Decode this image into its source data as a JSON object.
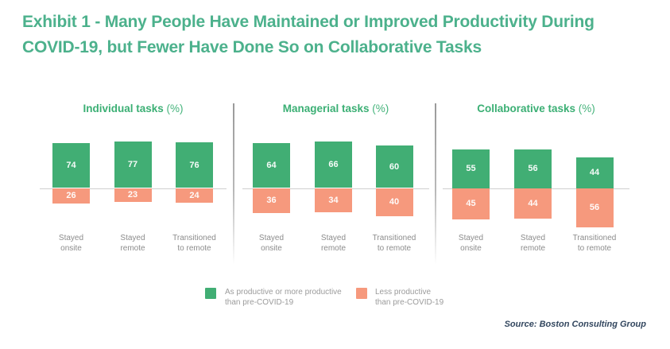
{
  "header": {
    "title_line1": "Exhibit 1 - Many People Have Maintained or Improved Productivity During",
    "title_line2": "COVID-19, but Fewer Have Done So on Collaborative Tasks",
    "title_color": "#4CB18C"
  },
  "chart_data": {
    "type": "bar",
    "variant": "diverging_stacked_percentage",
    "title": "Exhibit 1 - Many People Have Maintained or Improved Productivity During COVID-19, but Fewer Have Done So on Collaborative Tasks",
    "categories": [
      "Stayed onsite",
      "Stayed remote",
      "Transitioned to remote"
    ],
    "category_lines": [
      [
        "Stayed",
        "onsite"
      ],
      [
        "Stayed",
        "remote"
      ],
      [
        "Transitioned",
        "to remote"
      ]
    ],
    "panels": [
      {
        "title": "Individual tasks",
        "title_suffix": "(%)",
        "positive": [
          74,
          77,
          76
        ],
        "negative": [
          26,
          23,
          24
        ]
      },
      {
        "title": "Managerial tasks",
        "title_suffix": "(%)",
        "positive": [
          64,
          66,
          60
        ],
        "negative": [
          36,
          34,
          40
        ]
      },
      {
        "title": "Collaborative tasks",
        "title_suffix": "(%)",
        "positive": [
          55,
          56,
          44
        ],
        "negative": [
          45,
          44,
          56
        ]
      }
    ],
    "series": [
      {
        "name": "As productive or more productive than pre-COVID-19",
        "lines": [
          "As productive or more productive",
          "than pre-COVID-19"
        ],
        "color": "#41AE74"
      },
      {
        "name": "Less productive than pre-COVID-19",
        "lines": [
          "Less productive",
          "than pre-COVID-19"
        ],
        "color": "#F6997D"
      }
    ],
    "panel_title_color": "#3BAF74",
    "value_label_color": "#FFFFFF",
    "baseline_color": "#CFCFCF",
    "grid": false,
    "legend_position": "bottom-center",
    "unit": "%"
  },
  "footer": {
    "source": "Source: Boston Consulting Group"
  }
}
